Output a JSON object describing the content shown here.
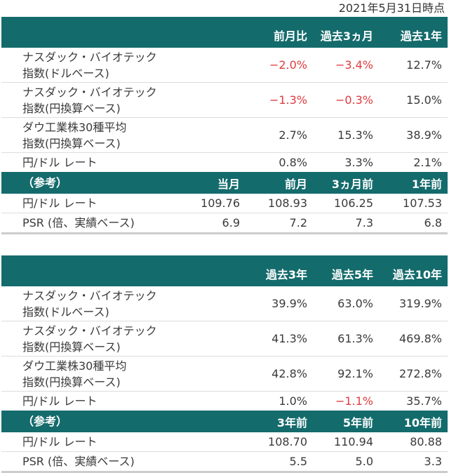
{
  "date": "2021年5月31日時点",
  "colors": {
    "header": "#146b6c",
    "negative": "#e03a3e"
  },
  "tables": [
    {
      "header": [
        "",
        "",
        "前月比",
        "過去3ヵ月",
        "過去1年"
      ],
      "rows": [
        {
          "label": [
            "ナスダック・バイオテック",
            "指数(ドルベース)"
          ],
          "values": [
            "",
            "−2.0%",
            "−3.4%",
            "12.7%"
          ]
        },
        {
          "label": [
            "ナスダック・バイオテック",
            "指数(円換算ベース)"
          ],
          "values": [
            "",
            "−1.3%",
            "−0.3%",
            "15.0%"
          ]
        },
        {
          "label": [
            "ダウ工業株30種平均",
            "指数(円換算ベース)"
          ],
          "values": [
            "",
            "2.7%",
            "15.3%",
            "38.9%"
          ]
        },
        {
          "label": [
            "円/ドル レート"
          ],
          "values": [
            "",
            "0.8%",
            "3.3%",
            "2.1%"
          ]
        }
      ],
      "ref_header": [
        "（参考）",
        "当月",
        "前月",
        "3ヵ月前",
        "1年前"
      ],
      "ref_rows": [
        {
          "label": [
            "円/ドル レート"
          ],
          "values": [
            "109.76",
            "108.93",
            "106.25",
            "107.53"
          ]
        },
        {
          "label": [
            "PSR (倍、実績ベース)"
          ],
          "values": [
            "6.9",
            "7.2",
            "7.3",
            "6.8"
          ]
        }
      ]
    },
    {
      "header": [
        "",
        "",
        "過去3年",
        "過去5年",
        "過去10年"
      ],
      "rows": [
        {
          "label": [
            "ナスダック・バイオテック",
            "指数(ドルベース)"
          ],
          "values": [
            "",
            "39.9%",
            "63.0%",
            "319.9%"
          ]
        },
        {
          "label": [
            "ナスダック・バイオテック",
            "指数(円換算ベース)"
          ],
          "values": [
            "",
            "41.3%",
            "61.3%",
            "469.8%"
          ]
        },
        {
          "label": [
            "ダウ工業株30種平均",
            "指数(円換算ベース)"
          ],
          "values": [
            "",
            "42.8%",
            "92.1%",
            "272.8%"
          ]
        },
        {
          "label": [
            "円/ドル レート"
          ],
          "values": [
            "",
            "1.0%",
            "−1.1%",
            "35.7%"
          ]
        }
      ],
      "ref_header": [
        "（参考）",
        "",
        "3年前",
        "5年前",
        "10年前"
      ],
      "ref_rows": [
        {
          "label": [
            "円/ドル レート"
          ],
          "values": [
            "",
            "108.70",
            "110.94",
            "80.88"
          ]
        },
        {
          "label": [
            "PSR (倍、実績ベース)"
          ],
          "values": [
            "",
            "5.5",
            "5.0",
            "3.3"
          ]
        }
      ]
    }
  ]
}
